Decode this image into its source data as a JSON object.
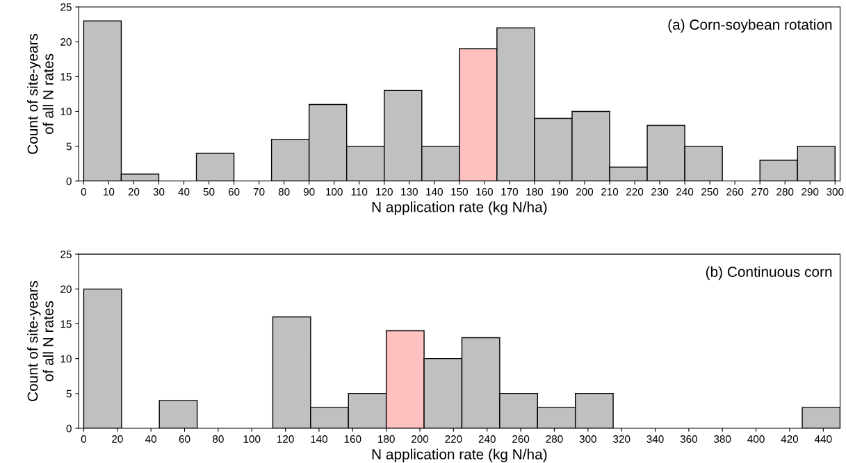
{
  "chart_data": [
    {
      "type": "histogram",
      "annotations": [
        "(a) Corn-soybean rotation"
      ],
      "xlabel": "N application rate (kg N/ha)",
      "ylabel": "Count of site-years\nof all N rates",
      "bins": [
        0,
        15,
        30,
        45,
        60,
        75,
        90,
        105,
        120,
        135,
        150,
        165,
        180,
        195,
        210,
        225,
        240,
        255,
        270,
        285,
        300
      ],
      "values": [
        23,
        1,
        0,
        4,
        0,
        6,
        11,
        5,
        13,
        5,
        19,
        22,
        9,
        10,
        2,
        8,
        5,
        0,
        3,
        5
      ],
      "colors": [
        "#c0c0c0",
        "#c0c0c0",
        "#c0c0c0",
        "#c0c0c0",
        "#c0c0c0",
        "#c0c0c0",
        "#c0c0c0",
        "#c0c0c0",
        "#c0c0c0",
        "#c0c0c0",
        "#ffc0c0",
        "#c0c0c0",
        "#c0c0c0",
        "#c0c0c0",
        "#c0c0c0",
        "#c0c0c0",
        "#c0c0c0",
        "#c0c0c0",
        "#c0c0c0",
        "#c0c0c0"
      ],
      "xlim": [
        -2,
        302
      ],
      "xticks": [
        0,
        10,
        20,
        30,
        40,
        50,
        60,
        70,
        80,
        90,
        100,
        110,
        120,
        130,
        140,
        150,
        160,
        170,
        180,
        190,
        200,
        210,
        220,
        230,
        240,
        250,
        260,
        270,
        280,
        290,
        300
      ],
      "ylim": [
        0,
        25
      ],
      "yticks": [
        0,
        5,
        10,
        15,
        20,
        25
      ],
      "grid": false
    },
    {
      "type": "histogram",
      "annotations": [
        "(b) Continuous corn"
      ],
      "xlabel": "N application rate (kg N/ha)",
      "ylabel": "Count of site-years\nof all N rates",
      "bins": [
        0,
        22.5,
        45,
        67.5,
        90,
        112.5,
        135,
        157.5,
        180,
        202.5,
        225,
        247.5,
        270,
        292.5,
        315,
        337.5,
        360,
        382.5,
        405,
        427.5,
        450
      ],
      "values": [
        20,
        0,
        4,
        0,
        0,
        16,
        3,
        5,
        14,
        10,
        13,
        5,
        3,
        5,
        0,
        0,
        0,
        0,
        0,
        3
      ],
      "colors": [
        "#c0c0c0",
        "#c0c0c0",
        "#c0c0c0",
        "#c0c0c0",
        "#c0c0c0",
        "#c0c0c0",
        "#c0c0c0",
        "#c0c0c0",
        "#ffc0c0",
        "#c0c0c0",
        "#c0c0c0",
        "#c0c0c0",
        "#c0c0c0",
        "#c0c0c0",
        "#c0c0c0",
        "#c0c0c0",
        "#c0c0c0",
        "#c0c0c0",
        "#c0c0c0",
        "#c0c0c0"
      ],
      "xlim": [
        -3,
        450
      ],
      "xticks": [
        0,
        20,
        40,
        60,
        80,
        100,
        120,
        140,
        160,
        180,
        200,
        220,
        240,
        260,
        280,
        300,
        320,
        340,
        360,
        380,
        400,
        420,
        440
      ],
      "ylim": [
        0,
        25
      ],
      "yticks": [
        0,
        5,
        10,
        15,
        20,
        25
      ],
      "grid": false
    }
  ]
}
